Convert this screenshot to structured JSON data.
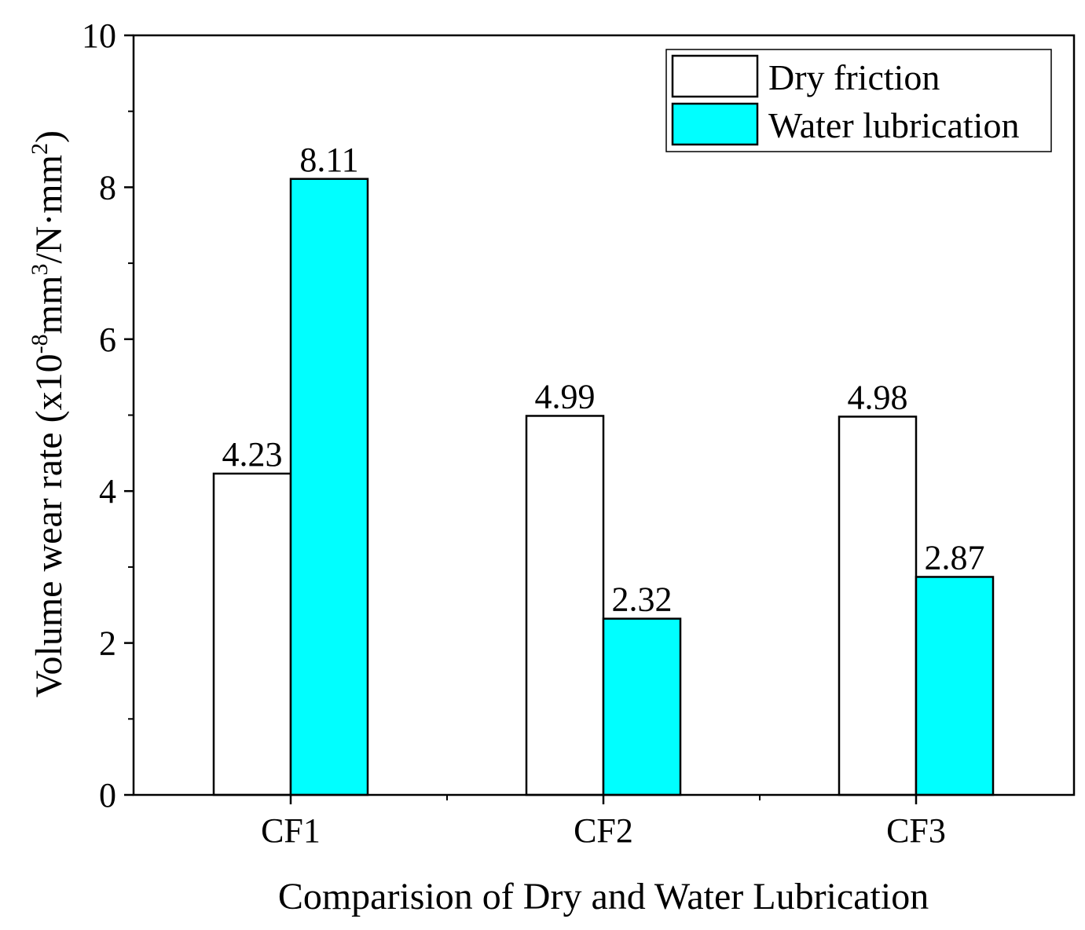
{
  "chart_data": {
    "type": "bar",
    "title": "",
    "xlabel": "Comparision of Dry and Water Lubrication",
    "ylabel": {
      "prefix": "Volume wear rate (x10",
      "exp1": "-8",
      "mid1": "mm",
      "exp2": "3",
      "mid2": "/N·mm",
      "exp3": "2",
      "suffix": ")"
    },
    "ylim": [
      0,
      10
    ],
    "yticks": [
      0,
      2,
      4,
      6,
      8,
      10
    ],
    "grid": false,
    "legend_position": "top-right",
    "categories": [
      "CF1",
      "CF2",
      "CF3"
    ],
    "series": [
      {
        "name": "Dry friction",
        "color": "#ffffff",
        "values": [
          4.23,
          4.99,
          4.98
        ],
        "labels": [
          "4.23",
          "4.99",
          "4.98"
        ]
      },
      {
        "name": "Water lubrication",
        "color": "#00ffff",
        "values": [
          8.11,
          2.32,
          2.87
        ],
        "labels": [
          "8.11",
          "2.32",
          "2.87"
        ]
      }
    ]
  }
}
